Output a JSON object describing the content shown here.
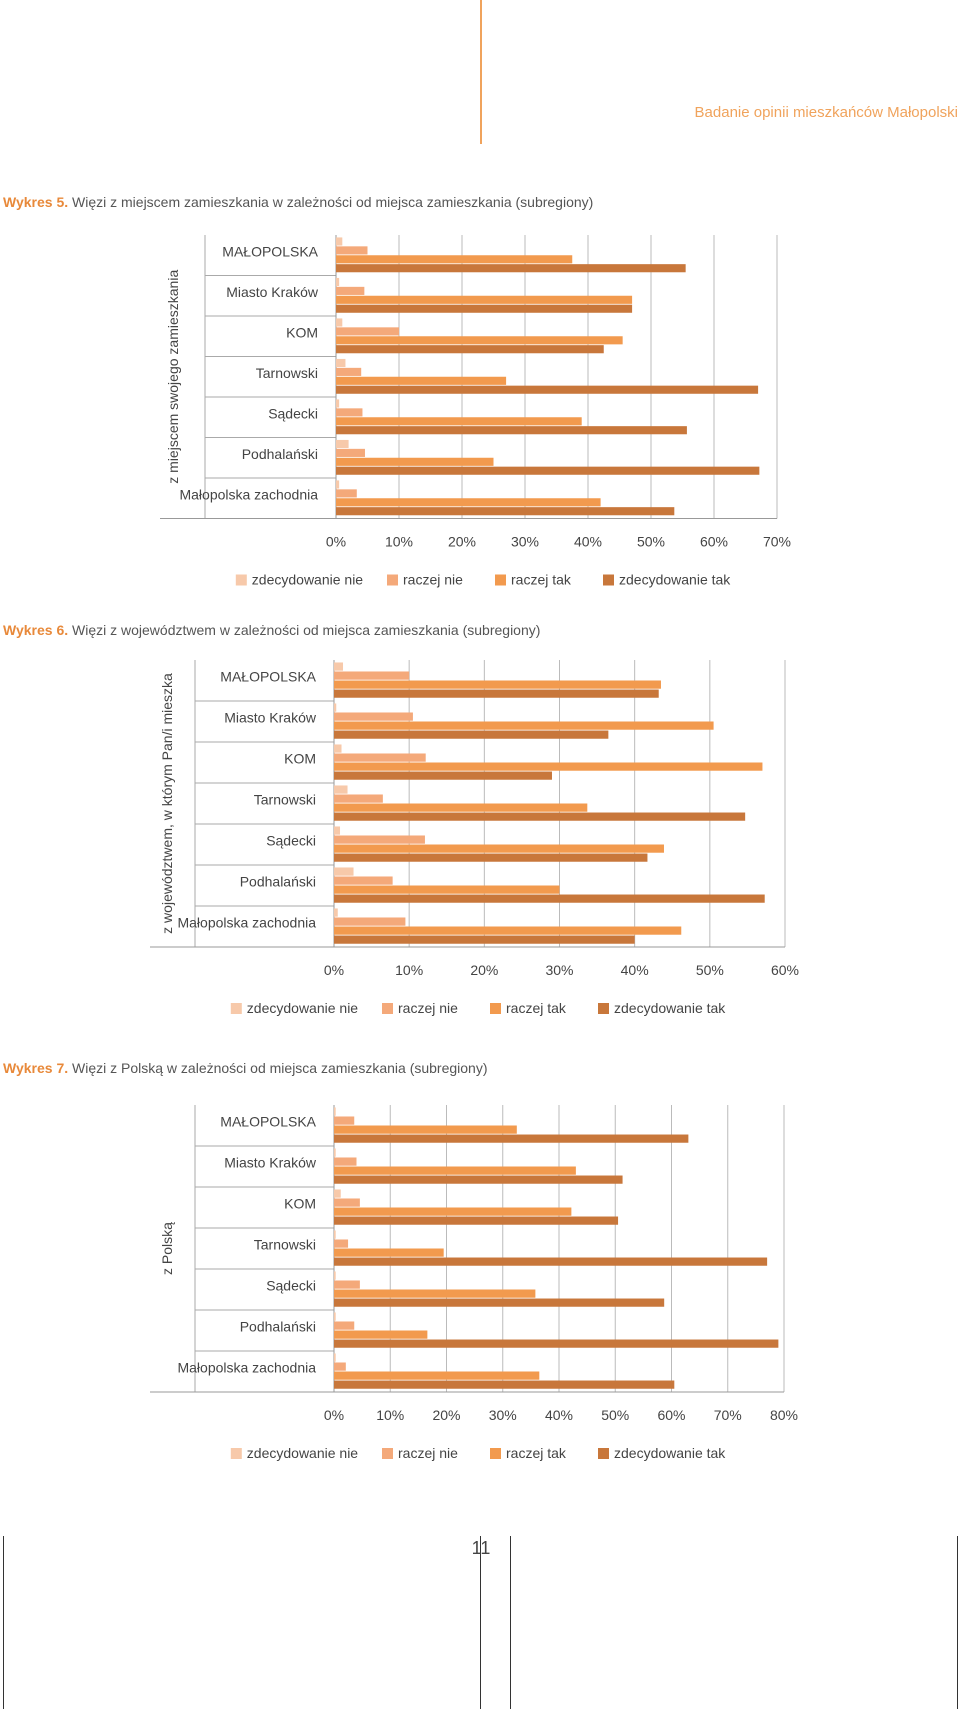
{
  "header": {
    "title": "Badanie opinii mieszkańców Małopolski"
  },
  "footer": {
    "page_number": "11"
  },
  "colors": {
    "zdecydowanie_nie": "#f7c9aa",
    "raczej_nie": "#f4a97a",
    "raczej_tak": "#f29a4e",
    "zdecydowanie_tak": "#c8773b",
    "accent": "#f0a35c"
  },
  "chart_data": [
    {
      "type": "bar",
      "orientation": "horizontal",
      "caption_num": "Wykres 5.",
      "title": "Więzi z miejscem zamieszkania w zależności od miejsca zamieszkania (subregiony)",
      "ylabel": "z miejscem swojego zamieszkania",
      "categories": [
        "MAŁOPOLSKA",
        "Miasto Kraków",
        "KOM",
        "Tarnowski",
        "Sądecki",
        "Podhalański",
        "Małopolska zachodnia"
      ],
      "xlim": [
        0,
        70
      ],
      "xticks": [
        "0%",
        "10%",
        "20%",
        "30%",
        "40%",
        "50%",
        "60%",
        "70%"
      ],
      "legend_position": "bottom",
      "series": [
        {
          "name": "zdecydowanie nie",
          "values": [
            1,
            0.5,
            1,
            1.5,
            0.5,
            2,
            0.5
          ]
        },
        {
          "name": "raczej nie",
          "values": [
            5,
            4.5,
            10,
            4,
            4.2,
            4.6,
            3.3
          ]
        },
        {
          "name": "raczej tak",
          "values": [
            37.5,
            47,
            45.5,
            27,
            39,
            25,
            42
          ]
        },
        {
          "name": "zdecydowanie tak",
          "values": [
            55.5,
            47,
            42.5,
            67,
            55.7,
            67.2,
            53.7
          ]
        }
      ]
    },
    {
      "type": "bar",
      "orientation": "horizontal",
      "caption_num": "Wykres 6.",
      "title": "Więzi z województwem w zależności od miejsca zamieszkania (subregiony)",
      "ylabel": "z województwem, w którym Pan/i mieszka",
      "categories": [
        "MAŁOPOLSKA",
        "Miasto Kraków",
        "KOM",
        "Tarnowski",
        "Sądecki",
        "Podhalański",
        "Małopolska zachodnia"
      ],
      "xlim": [
        0,
        60
      ],
      "xticks": [
        "0%",
        "10%",
        "20%",
        "30%",
        "40%",
        "50%",
        "60%"
      ],
      "legend_position": "bottom",
      "series": [
        {
          "name": "zdecydowanie nie",
          "values": [
            1.2,
            0.3,
            1,
            1.8,
            0.8,
            2.6,
            0.5
          ]
        },
        {
          "name": "raczej nie",
          "values": [
            10,
            10.5,
            12.2,
            6.5,
            12.1,
            7.8,
            9.5
          ]
        },
        {
          "name": "raczej tak",
          "values": [
            43.5,
            50.5,
            57,
            33.7,
            43.9,
            30,
            46.2
          ]
        },
        {
          "name": "zdecydowanie tak",
          "values": [
            43.2,
            36.5,
            29,
            54.7,
            41.7,
            57.3,
            40
          ]
        }
      ]
    },
    {
      "type": "bar",
      "orientation": "horizontal",
      "caption_num": "Wykres 7.",
      "title": "Więzi z Polską w zależności od miejsca zamieszkania (subregiony)",
      "ylabel": "z Polską",
      "categories": [
        "MAŁOPOLSKA",
        "Miasto Kraków",
        "KOM",
        "Tarnowski",
        "Sądecki",
        "Podhalański",
        "Małopolska zachodnia"
      ],
      "xlim": [
        0,
        80
      ],
      "xticks": [
        "0%",
        "10%",
        "20%",
        "30%",
        "40%",
        "50%",
        "60%",
        "70%",
        "80%"
      ],
      "legend_position": "bottom",
      "series": [
        {
          "name": "zdecydowanie nie",
          "values": [
            0.3,
            0.3,
            1.2,
            0.3,
            0.3,
            0.3,
            0.3
          ]
        },
        {
          "name": "raczej nie",
          "values": [
            3.6,
            4,
            4.6,
            2.5,
            4.6,
            3.6,
            2.1
          ]
        },
        {
          "name": "raczej tak",
          "values": [
            32.5,
            43,
            42.2,
            19.5,
            35.8,
            16.6,
            36.5
          ]
        },
        {
          "name": "zdecydowanie tak",
          "values": [
            63,
            51.3,
            50.5,
            77,
            58.7,
            79,
            60.5
          ]
        }
      ]
    }
  ]
}
